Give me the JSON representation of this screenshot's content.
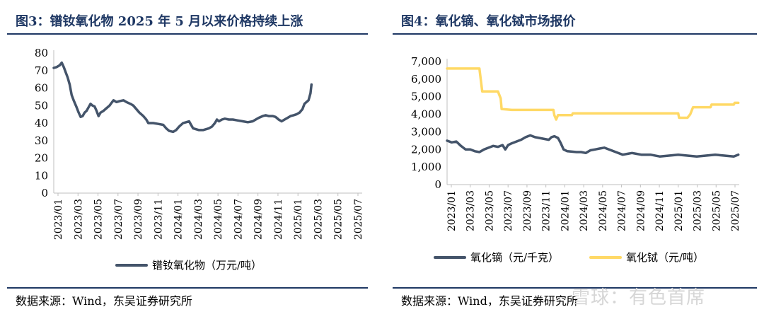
{
  "left": {
    "title": "图3：镨钕氧化物 2025 年 5 月以来价格持续上涨",
    "source": "数据来源：Wind，东吴证券研究所",
    "chart_data": {
      "type": "line",
      "ylim": [
        0,
        80
      ],
      "yticks": [
        "0",
        "10",
        "20",
        "30",
        "40",
        "50",
        "60",
        "70",
        "80"
      ],
      "xticks": [
        "2023/01",
        "2023/03",
        "2023/05",
        "2023/07",
        "2023/09",
        "2023/11",
        "2024/01",
        "2024/03",
        "2024/05",
        "2024/07",
        "2024/09",
        "2024/11",
        "2025/01",
        "2025/03",
        "2025/05",
        "2025/07"
      ],
      "legend_position": "bottom",
      "series": [
        {
          "name": "镨钕氧化物（万元/吨）",
          "color": "#44546a",
          "points": [
            [
              0,
              71.5
            ],
            [
              0.3,
              72
            ],
            [
              0.6,
              73
            ],
            [
              0.8,
              74.5
            ],
            [
              1.0,
              72
            ],
            [
              1.2,
              69
            ],
            [
              1.4,
              66
            ],
            [
              1.6,
              62
            ],
            [
              1.8,
              56
            ],
            [
              2.0,
              53
            ],
            [
              2.3,
              49
            ],
            [
              2.5,
              46
            ],
            [
              2.7,
              43.5
            ],
            [
              2.9,
              44
            ],
            [
              3.1,
              46
            ],
            [
              3.3,
              47
            ],
            [
              3.5,
              49
            ],
            [
              3.7,
              51
            ],
            [
              3.9,
              50
            ],
            [
              4.1,
              49.5
            ],
            [
              4.3,
              47
            ],
            [
              4.5,
              44
            ],
            [
              4.7,
              46
            ],
            [
              5.0,
              47
            ],
            [
              5.3,
              48.5
            ],
            [
              5.6,
              50
            ],
            [
              5.8,
              51.5
            ],
            [
              6.0,
              53
            ],
            [
              6.3,
              52
            ],
            [
              6.6,
              52.5
            ],
            [
              7.0,
              53
            ],
            [
              7.3,
              52
            ],
            [
              7.7,
              51
            ],
            [
              8.0,
              50
            ],
            [
              8.3,
              48
            ],
            [
              8.6,
              46
            ],
            [
              9.0,
              44
            ],
            [
              9.3,
              42
            ],
            [
              9.5,
              40
            ],
            [
              10.0,
              40
            ],
            [
              10.5,
              39.5
            ],
            [
              11.0,
              39
            ],
            [
              11.3,
              37
            ],
            [
              11.6,
              35.5
            ],
            [
              12.0,
              35
            ],
            [
              12.3,
              36
            ],
            [
              12.6,
              38
            ],
            [
              13.0,
              40
            ],
            [
              13.3,
              40.5
            ],
            [
              13.6,
              41
            ],
            [
              13.8,
              39
            ],
            [
              14.0,
              37
            ],
            [
              14.3,
              36.5
            ],
            [
              14.6,
              36
            ],
            [
              15.0,
              36
            ],
            [
              15.3,
              36.5
            ],
            [
              15.6,
              37
            ],
            [
              15.9,
              38
            ],
            [
              16.2,
              40
            ],
            [
              16.4,
              42
            ],
            [
              16.6,
              41
            ],
            [
              16.9,
              42
            ],
            [
              17.2,
              42.5
            ],
            [
              17.6,
              42
            ],
            [
              18.0,
              42
            ],
            [
              18.5,
              41.5
            ],
            [
              19.0,
              41
            ],
            [
              19.5,
              40.5
            ],
            [
              20.0,
              41
            ],
            [
              20.3,
              42
            ],
            [
              20.6,
              43
            ],
            [
              21.0,
              44
            ],
            [
              21.3,
              44.5
            ],
            [
              21.6,
              44
            ],
            [
              22.0,
              44
            ],
            [
              22.3,
              43.5
            ],
            [
              22.6,
              42
            ],
            [
              22.9,
              41
            ],
            [
              23.2,
              42
            ],
            [
              23.5,
              43
            ],
            [
              23.8,
              44
            ],
            [
              24.1,
              44.5
            ],
            [
              24.4,
              45
            ],
            [
              24.7,
              46
            ],
            [
              25.0,
              48
            ],
            [
              25.2,
              51
            ],
            [
              25.4,
              52
            ],
            [
              25.6,
              53
            ],
            [
              25.7,
              55
            ],
            [
              25.8,
              57
            ],
            [
              25.9,
              62
            ]
          ]
        }
      ]
    }
  },
  "right": {
    "title": "图4：氧化镝、氧化铽市场报价",
    "source": "数据来源：Wind，东吴证券研究所",
    "watermark": "雪球：有色首席",
    "chart_data": {
      "type": "line",
      "ylim": [
        0,
        7000
      ],
      "yticks": [
        "0",
        "1,000",
        "2,000",
        "3,000",
        "4,000",
        "5,000",
        "6,000",
        "7,000"
      ],
      "xticks": [
        "2023/01",
        "2023/03",
        "2023/05",
        "2023/07",
        "2023/09",
        "2023/11",
        "2024/01",
        "2024/03",
        "2024/05",
        "2024/07",
        "2024/09",
        "2024/11",
        "2025/01",
        "2025/03",
        "2025/05",
        "2025/07"
      ],
      "legend_position": "bottom",
      "series": [
        {
          "name": "氧化镝（元/千克）",
          "color": "#44546a",
          "points": [
            [
              0,
              2500
            ],
            [
              0.5,
              2400
            ],
            [
              1.0,
              2450
            ],
            [
              1.5,
              2200
            ],
            [
              2.0,
              2000
            ],
            [
              2.5,
              2000
            ],
            [
              3.0,
              1900
            ],
            [
              3.5,
              1850
            ],
            [
              4.0,
              2000
            ],
            [
              4.5,
              2100
            ],
            [
              5.0,
              2200
            ],
            [
              5.5,
              2150
            ],
            [
              6.0,
              2250
            ],
            [
              6.3,
              2000
            ],
            [
              6.6,
              2250
            ],
            [
              7.0,
              2350
            ],
            [
              7.5,
              2450
            ],
            [
              8.0,
              2550
            ],
            [
              8.5,
              2700
            ],
            [
              9.0,
              2800
            ],
            [
              9.5,
              2700
            ],
            [
              10.0,
              2650
            ],
            [
              10.5,
              2600
            ],
            [
              11.0,
              2550
            ],
            [
              11.3,
              2700
            ],
            [
              11.6,
              2750
            ],
            [
              12.0,
              2650
            ],
            [
              12.3,
              2350
            ],
            [
              12.6,
              2000
            ],
            [
              13.0,
              1900
            ],
            [
              14.0,
              1850
            ],
            [
              14.5,
              1850
            ],
            [
              15.0,
              1800
            ],
            [
              15.5,
              1950
            ],
            [
              16.0,
              2000
            ],
            [
              16.5,
              2050
            ],
            [
              17.0,
              2100
            ],
            [
              17.5,
              2000
            ],
            [
              18.0,
              1900
            ],
            [
              18.5,
              1800
            ],
            [
              19.0,
              1700
            ],
            [
              19.5,
              1750
            ],
            [
              20.0,
              1800
            ],
            [
              20.5,
              1750
            ],
            [
              21.0,
              1700
            ],
            [
              22.0,
              1700
            ],
            [
              23.0,
              1600
            ],
            [
              24.0,
              1650
            ],
            [
              25.0,
              1700
            ],
            [
              26.0,
              1650
            ],
            [
              27.0,
              1600
            ],
            [
              28.0,
              1650
            ],
            [
              29.0,
              1700
            ],
            [
              30.0,
              1650
            ],
            [
              31.0,
              1600
            ],
            [
              31.5,
              1700
            ]
          ]
        },
        {
          "name": "氧化铽（元/吨）",
          "color": "#ffd966",
          "points": [
            [
              0,
              6600
            ],
            [
              3.5,
              6600
            ],
            [
              3.8,
              5300
            ],
            [
              5.5,
              5300
            ],
            [
              5.8,
              4900
            ],
            [
              5.9,
              4300
            ],
            [
              7.0,
              4250
            ],
            [
              11.5,
              4250
            ],
            [
              11.6,
              3950
            ],
            [
              11.8,
              3700
            ],
            [
              12.0,
              3950
            ],
            [
              13.5,
              3950
            ],
            [
              13.6,
              4050
            ],
            [
              25.0,
              4050
            ],
            [
              25.1,
              3800
            ],
            [
              26.0,
              3800
            ],
            [
              26.3,
              4000
            ],
            [
              26.6,
              4400
            ],
            [
              28.5,
              4400
            ],
            [
              28.6,
              4550
            ],
            [
              31.0,
              4550
            ],
            [
              31.1,
              4650
            ],
            [
              31.5,
              4650
            ]
          ]
        }
      ]
    }
  }
}
